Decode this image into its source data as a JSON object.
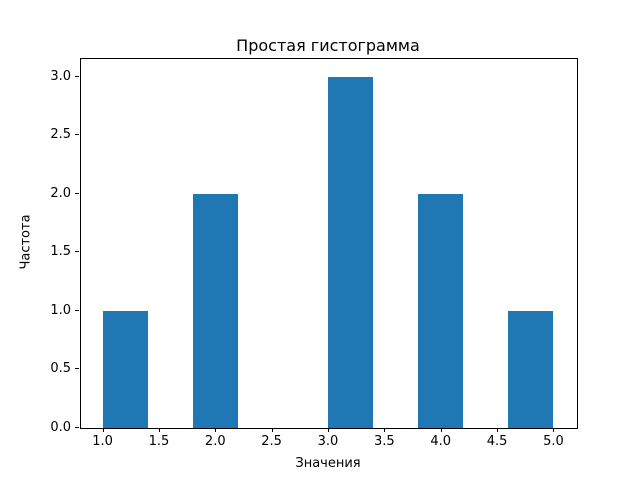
{
  "figure": {
    "background": "#ffffff",
    "axes_color": "#000000"
  },
  "chart_data": {
    "type": "bar",
    "subtype": "histogram",
    "title": "Простая гистограмма",
    "xlabel": "Значения",
    "ylabel": "Частота",
    "bar_color": "#1f77b4",
    "bin_edges": [
      1.0,
      1.4,
      1.8,
      2.2,
      2.6,
      3.0,
      3.4,
      3.8,
      4.2,
      4.6,
      5.0
    ],
    "counts": [
      1,
      0,
      2,
      0,
      0,
      3,
      0,
      2,
      0,
      1
    ],
    "xlim": [
      0.8,
      5.2
    ],
    "ylim": [
      0.0,
      3.15
    ],
    "grid": false,
    "legend": null,
    "xticks": [
      {
        "value": 1.0,
        "label": "1.0"
      },
      {
        "value": 1.5,
        "label": "1.5"
      },
      {
        "value": 2.0,
        "label": "2.0"
      },
      {
        "value": 2.5,
        "label": "2.5"
      },
      {
        "value": 3.0,
        "label": "3.0"
      },
      {
        "value": 3.5,
        "label": "3.5"
      },
      {
        "value": 4.0,
        "label": "4.0"
      },
      {
        "value": 4.5,
        "label": "4.5"
      },
      {
        "value": 5.0,
        "label": "5.0"
      }
    ],
    "yticks": [
      {
        "value": 0.0,
        "label": "0.0"
      },
      {
        "value": 0.5,
        "label": "0.5"
      },
      {
        "value": 1.0,
        "label": "1.0"
      },
      {
        "value": 1.5,
        "label": "1.5"
      },
      {
        "value": 2.0,
        "label": "2.0"
      },
      {
        "value": 2.5,
        "label": "2.5"
      },
      {
        "value": 3.0,
        "label": "3.0"
      }
    ]
  }
}
